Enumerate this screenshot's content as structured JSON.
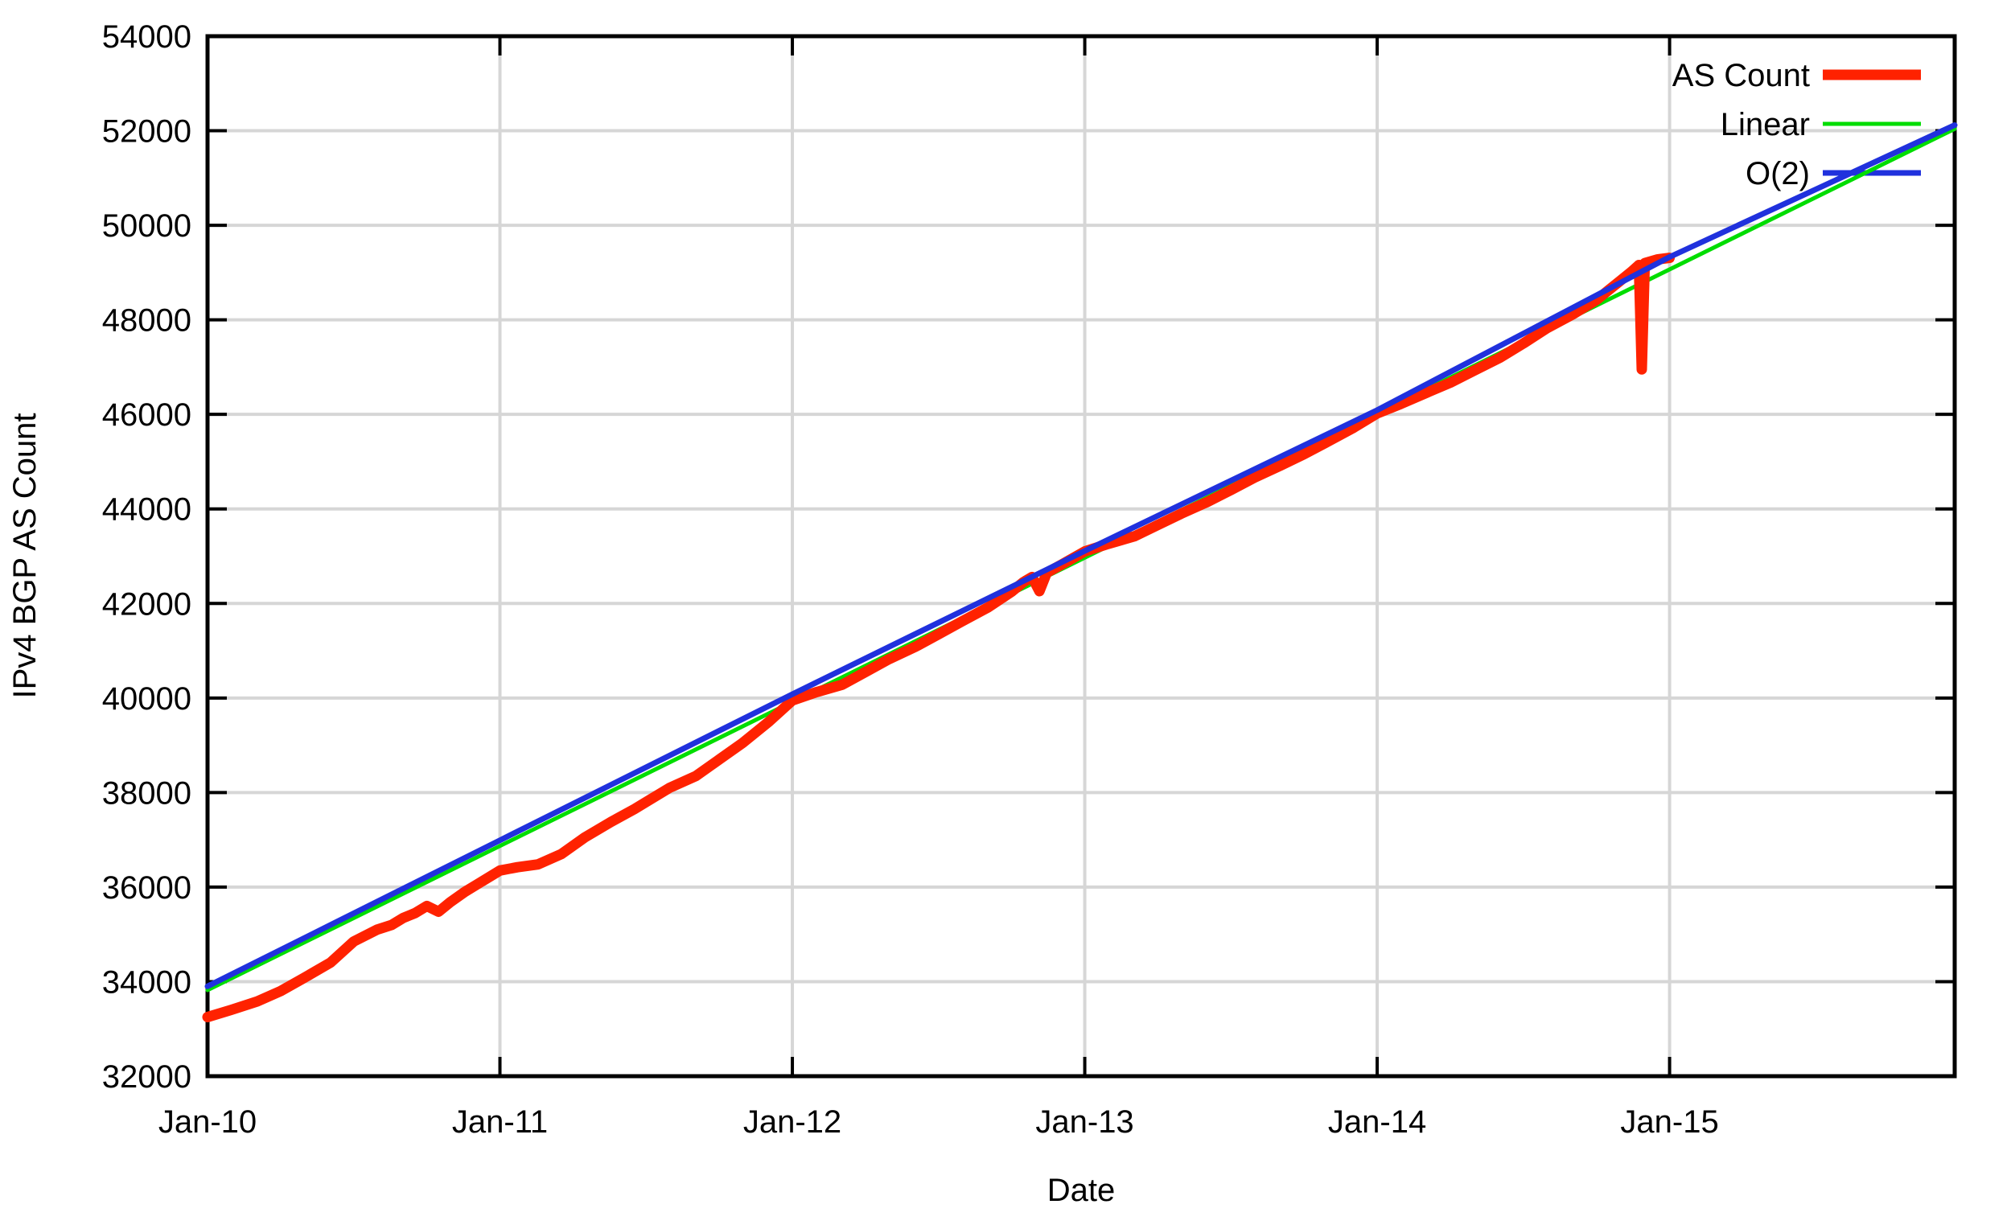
{
  "colors": {
    "background": "#ffffff",
    "axis": "#000000",
    "grid": "#d6d6d6",
    "text": "#000000",
    "as_count": "#ff2200",
    "linear": "#00dd00",
    "o2": "#2031dd"
  },
  "chart_data": {
    "type": "line",
    "title": "",
    "xlabel": "Date",
    "ylabel": "IPv4 BGP AS Count",
    "ylim": [
      32000,
      54000
    ],
    "xlim_years": [
      2010.0,
      2015.975
    ],
    "grid": true,
    "legend_position": "top-right-inside",
    "y_ticks": [
      32000,
      34000,
      36000,
      38000,
      40000,
      42000,
      44000,
      46000,
      48000,
      50000,
      52000,
      54000
    ],
    "x_ticks": [
      {
        "year": 2010,
        "label": "Jan-10"
      },
      {
        "year": 2011,
        "label": "Jan-11"
      },
      {
        "year": 2012,
        "label": "Jan-12"
      },
      {
        "year": 2013,
        "label": "Jan-13"
      },
      {
        "year": 2014,
        "label": "Jan-14"
      },
      {
        "year": 2015,
        "label": "Jan-15"
      }
    ],
    "series": [
      {
        "name": "Linear",
        "color": "#00dd00",
        "stroke_width": 5,
        "points": [
          [
            2010.0,
            33820
          ],
          [
            2015.975,
            52040
          ]
        ]
      },
      {
        "name": "AS Count",
        "color": "#ff2200",
        "stroke_width": 13,
        "points": [
          [
            2010.0,
            33250
          ],
          [
            2010.08,
            33400
          ],
          [
            2010.17,
            33580
          ],
          [
            2010.25,
            33800
          ],
          [
            2010.33,
            34080
          ],
          [
            2010.42,
            34400
          ],
          [
            2010.5,
            34850
          ],
          [
            2010.58,
            35100
          ],
          [
            2010.63,
            35200
          ],
          [
            2010.67,
            35350
          ],
          [
            2010.71,
            35450
          ],
          [
            2010.75,
            35600
          ],
          [
            2010.79,
            35480
          ],
          [
            2010.83,
            35680
          ],
          [
            2010.88,
            35900
          ],
          [
            2010.92,
            36050
          ],
          [
            2011.0,
            36350
          ],
          [
            2011.06,
            36420
          ],
          [
            2011.13,
            36480
          ],
          [
            2011.21,
            36700
          ],
          [
            2011.29,
            37050
          ],
          [
            2011.38,
            37380
          ],
          [
            2011.46,
            37650
          ],
          [
            2011.5,
            37800
          ],
          [
            2011.58,
            38100
          ],
          [
            2011.67,
            38350
          ],
          [
            2011.75,
            38700
          ],
          [
            2011.83,
            39050
          ],
          [
            2011.92,
            39500
          ],
          [
            2012.0,
            39950
          ],
          [
            2012.08,
            40120
          ],
          [
            2012.17,
            40280
          ],
          [
            2012.25,
            40550
          ],
          [
            2012.33,
            40820
          ],
          [
            2012.42,
            41080
          ],
          [
            2012.5,
            41350
          ],
          [
            2012.58,
            41620
          ],
          [
            2012.67,
            41920
          ],
          [
            2012.75,
            42250
          ],
          [
            2012.79,
            42450
          ],
          [
            2012.82,
            42560
          ],
          [
            2012.845,
            42260
          ],
          [
            2012.87,
            42650
          ],
          [
            2012.92,
            42820
          ],
          [
            2013.0,
            43100
          ],
          [
            2013.08,
            43260
          ],
          [
            2013.17,
            43420
          ],
          [
            2013.25,
            43660
          ],
          [
            2013.33,
            43900
          ],
          [
            2013.42,
            44150
          ],
          [
            2013.5,
            44400
          ],
          [
            2013.58,
            44660
          ],
          [
            2013.67,
            44920
          ],
          [
            2013.75,
            45160
          ],
          [
            2013.83,
            45420
          ],
          [
            2013.92,
            45720
          ],
          [
            2014.0,
            46020
          ],
          [
            2014.08,
            46220
          ],
          [
            2014.17,
            46460
          ],
          [
            2014.25,
            46670
          ],
          [
            2014.33,
            46920
          ],
          [
            2014.42,
            47200
          ],
          [
            2014.5,
            47500
          ],
          [
            2014.58,
            47820
          ],
          [
            2014.67,
            48120
          ],
          [
            2014.75,
            48420
          ],
          [
            2014.79,
            48620
          ],
          [
            2014.83,
            48820
          ],
          [
            2014.87,
            49020
          ],
          [
            2014.895,
            49160
          ],
          [
            2014.905,
            46950
          ],
          [
            2014.915,
            49200
          ],
          [
            2014.96,
            49280
          ],
          [
            2015.0,
            49310
          ]
        ]
      },
      {
        "name": "O(2)",
        "color": "#2031dd",
        "stroke_width": 7,
        "points": [
          [
            2010.0,
            33900
          ],
          [
            2011.0,
            36990
          ],
          [
            2012.0,
            40080
          ],
          [
            2013.0,
            43110
          ],
          [
            2014.0,
            46090
          ],
          [
            2015.0,
            49330
          ],
          [
            2015.975,
            52120
          ]
        ]
      }
    ],
    "legend": [
      {
        "label": "AS Count",
        "color": "#ff2200",
        "thickness": 13
      },
      {
        "label": "Linear",
        "color": "#00dd00",
        "thickness": 5
      },
      {
        "label": "O(2)",
        "color": "#2031dd",
        "thickness": 7
      }
    ]
  }
}
